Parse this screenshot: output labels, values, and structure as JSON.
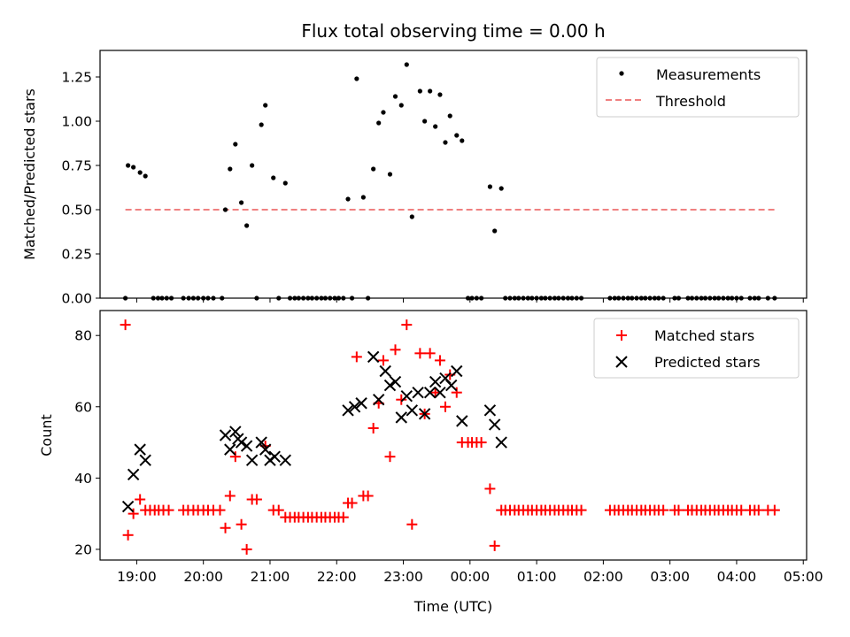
{
  "chart_data": [
    {
      "type": "scatter",
      "title": "Flux total observing time = 0.00 h",
      "xlabel": "",
      "ylabel": "Matched/Predicted stars",
      "xlim": [
        18.45,
        29.05
      ],
      "ylim": [
        0,
        1.4
      ],
      "yticks": [
        0,
        0.25,
        0.5,
        0.75,
        1.0,
        1.25
      ],
      "ytick_labels": [
        "0.00",
        "0.25",
        "0.50",
        "0.75",
        "1.00",
        "1.25"
      ],
      "legend": [
        {
          "label": "Measurements",
          "marker": "dot",
          "color": "#000000"
        },
        {
          "label": "Threshold",
          "marker": "dashed-line",
          "color": "#f08080"
        }
      ],
      "threshold": {
        "value": 0.5,
        "x_start": 18.83,
        "x_end": 28.6,
        "color": "#f08080"
      },
      "measurements": [
        [
          18.83,
          0
        ],
        [
          18.87,
          0.75
        ],
        [
          18.95,
          0.74
        ],
        [
          19.05,
          0.71
        ],
        [
          19.13,
          0.69
        ],
        [
          19.25,
          0
        ],
        [
          19.32,
          0
        ],
        [
          19.38,
          0
        ],
        [
          19.45,
          0
        ],
        [
          19.52,
          0
        ],
        [
          19.7,
          0
        ],
        [
          19.78,
          0
        ],
        [
          19.85,
          0
        ],
        [
          19.92,
          0
        ],
        [
          20.0,
          0
        ],
        [
          20.07,
          0
        ],
        [
          20.15,
          0
        ],
        [
          20.28,
          0
        ],
        [
          20.33,
          0.5
        ],
        [
          20.4,
          0.73
        ],
        [
          20.48,
          0.87
        ],
        [
          20.57,
          0.54
        ],
        [
          20.65,
          0.41
        ],
        [
          20.73,
          0.75
        ],
        [
          20.8,
          0
        ],
        [
          20.87,
          0.98
        ],
        [
          20.93,
          1.09
        ],
        [
          21.05,
          0.68
        ],
        [
          21.13,
          0
        ],
        [
          21.23,
          0.65
        ],
        [
          21.3,
          0
        ],
        [
          21.37,
          0
        ],
        [
          21.43,
          0
        ],
        [
          21.5,
          0
        ],
        [
          21.57,
          0
        ],
        [
          21.63,
          0
        ],
        [
          21.7,
          0
        ],
        [
          21.77,
          0
        ],
        [
          21.83,
          0
        ],
        [
          21.9,
          0
        ],
        [
          21.97,
          0
        ],
        [
          22.03,
          0
        ],
        [
          22.1,
          0
        ],
        [
          22.17,
          0.56
        ],
        [
          22.23,
          0
        ],
        [
          22.3,
          1.24
        ],
        [
          22.4,
          0.57
        ],
        [
          22.47,
          0
        ],
        [
          22.55,
          0.73
        ],
        [
          22.63,
          0.99
        ],
        [
          22.7,
          1.05
        ],
        [
          22.8,
          0.7
        ],
        [
          22.88,
          1.14
        ],
        [
          22.97,
          1.09
        ],
        [
          23.05,
          1.32
        ],
        [
          23.13,
          0.46
        ],
        [
          23.25,
          1.17
        ],
        [
          23.32,
          1.0
        ],
        [
          23.4,
          1.17
        ],
        [
          23.48,
          0.97
        ],
        [
          23.55,
          1.15
        ],
        [
          23.63,
          0.88
        ],
        [
          23.7,
          1.03
        ],
        [
          23.8,
          0.92
        ],
        [
          23.88,
          0.89
        ],
        [
          23.97,
          0
        ],
        [
          24.03,
          0
        ],
        [
          24.1,
          0
        ],
        [
          24.17,
          0
        ],
        [
          24.3,
          0.63
        ],
        [
          24.37,
          0.38
        ],
        [
          24.47,
          0.62
        ],
        [
          24.53,
          0
        ],
        [
          24.6,
          0
        ],
        [
          24.67,
          0
        ],
        [
          24.73,
          0
        ],
        [
          24.8,
          0
        ],
        [
          24.87,
          0
        ],
        [
          24.93,
          0
        ],
        [
          25.0,
          0
        ],
        [
          25.07,
          0
        ],
        [
          25.13,
          0
        ],
        [
          25.2,
          0
        ],
        [
          25.27,
          0
        ],
        [
          25.33,
          0
        ],
        [
          25.4,
          0
        ],
        [
          25.47,
          0
        ],
        [
          25.53,
          0
        ],
        [
          25.6,
          0
        ],
        [
          25.67,
          0
        ],
        [
          26.1,
          0
        ],
        [
          26.17,
          0
        ],
        [
          26.23,
          0
        ],
        [
          26.3,
          0
        ],
        [
          26.37,
          0
        ],
        [
          26.43,
          0
        ],
        [
          26.5,
          0
        ],
        [
          26.57,
          0
        ],
        [
          26.63,
          0
        ],
        [
          26.7,
          0
        ],
        [
          26.77,
          0
        ],
        [
          26.83,
          0
        ],
        [
          26.9,
          0
        ],
        [
          27.07,
          0
        ],
        [
          27.13,
          0
        ],
        [
          27.27,
          0
        ],
        [
          27.33,
          0
        ],
        [
          27.4,
          0
        ],
        [
          27.47,
          0
        ],
        [
          27.53,
          0
        ],
        [
          27.6,
          0
        ],
        [
          27.67,
          0
        ],
        [
          27.73,
          0
        ],
        [
          27.8,
          0
        ],
        [
          27.87,
          0
        ],
        [
          27.93,
          0
        ],
        [
          28.0,
          0
        ],
        [
          28.07,
          0
        ],
        [
          28.2,
          0
        ],
        [
          28.27,
          0
        ],
        [
          28.33,
          0
        ],
        [
          28.47,
          0
        ],
        [
          28.57,
          0
        ]
      ]
    },
    {
      "type": "scatter",
      "title": "",
      "xlabel": "Time (UTC)",
      "ylabel": "Count",
      "xlim": [
        18.45,
        29.05
      ],
      "ylim": [
        17,
        87
      ],
      "yticks": [
        20,
        40,
        60,
        80
      ],
      "ytick_labels": [
        "20",
        "40",
        "60",
        "80"
      ],
      "xticks": [
        19,
        20,
        21,
        22,
        23,
        24,
        25,
        26,
        27,
        28,
        29
      ],
      "xtick_labels": [
        "19:00",
        "20:00",
        "21:00",
        "22:00",
        "23:00",
        "00:00",
        "01:00",
        "02:00",
        "03:00",
        "04:00",
        "05:00"
      ],
      "legend": [
        {
          "label": "Matched stars",
          "marker": "plus",
          "color": "#ff0000"
        },
        {
          "label": "Predicted stars",
          "marker": "x",
          "color": "#000000"
        }
      ],
      "series": [
        {
          "name": "Matched stars",
          "marker": "plus",
          "color": "#ff0000",
          "points": [
            [
              18.83,
              83
            ],
            [
              18.87,
              24
            ],
            [
              18.95,
              30
            ],
            [
              19.05,
              34
            ],
            [
              19.13,
              31
            ],
            [
              19.2,
              31
            ],
            [
              19.27,
              31
            ],
            [
              19.33,
              31
            ],
            [
              19.4,
              31
            ],
            [
              19.48,
              31
            ],
            [
              19.7,
              31
            ],
            [
              19.77,
              31
            ],
            [
              19.85,
              31
            ],
            [
              19.92,
              31
            ],
            [
              20.0,
              31
            ],
            [
              20.07,
              31
            ],
            [
              20.15,
              31
            ],
            [
              20.25,
              31
            ],
            [
              20.33,
              26
            ],
            [
              20.4,
              35
            ],
            [
              20.48,
              46
            ],
            [
              20.57,
              27
            ],
            [
              20.65,
              20
            ],
            [
              20.73,
              34
            ],
            [
              20.8,
              34
            ],
            [
              20.93,
              49
            ],
            [
              21.05,
              31
            ],
            [
              21.13,
              31
            ],
            [
              21.23,
              29
            ],
            [
              21.3,
              29
            ],
            [
              21.37,
              29
            ],
            [
              21.43,
              29
            ],
            [
              21.5,
              29
            ],
            [
              21.57,
              29
            ],
            [
              21.63,
              29
            ],
            [
              21.7,
              29
            ],
            [
              21.77,
              29
            ],
            [
              21.83,
              29
            ],
            [
              21.9,
              29
            ],
            [
              21.97,
              29
            ],
            [
              22.03,
              29
            ],
            [
              22.1,
              29
            ],
            [
              22.17,
              33
            ],
            [
              22.23,
              33
            ],
            [
              22.3,
              74
            ],
            [
              22.4,
              35
            ],
            [
              22.47,
              35
            ],
            [
              22.55,
              54
            ],
            [
              22.63,
              61
            ],
            [
              22.7,
              73
            ],
            [
              22.8,
              46
            ],
            [
              22.88,
              76
            ],
            [
              22.97,
              62
            ],
            [
              23.05,
              83
            ],
            [
              23.13,
              27
            ],
            [
              23.25,
              75
            ],
            [
              23.32,
              58
            ],
            [
              23.4,
              75
            ],
            [
              23.48,
              64
            ],
            [
              23.55,
              73
            ],
            [
              23.63,
              60
            ],
            [
              23.7,
              69
            ],
            [
              23.8,
              64
            ],
            [
              23.88,
              50
            ],
            [
              23.97,
              50
            ],
            [
              24.03,
              50
            ],
            [
              24.1,
              50
            ],
            [
              24.17,
              50
            ],
            [
              24.3,
              37
            ],
            [
              24.37,
              21
            ],
            [
              24.47,
              31
            ],
            [
              24.53,
              31
            ],
            [
              24.6,
              31
            ],
            [
              24.67,
              31
            ],
            [
              24.73,
              31
            ],
            [
              24.8,
              31
            ],
            [
              24.87,
              31
            ],
            [
              24.93,
              31
            ],
            [
              25.0,
              31
            ],
            [
              25.07,
              31
            ],
            [
              25.13,
              31
            ],
            [
              25.2,
              31
            ],
            [
              25.27,
              31
            ],
            [
              25.33,
              31
            ],
            [
              25.4,
              31
            ],
            [
              25.47,
              31
            ],
            [
              25.53,
              31
            ],
            [
              25.6,
              31
            ],
            [
              25.67,
              31
            ],
            [
              26.1,
              31
            ],
            [
              26.17,
              31
            ],
            [
              26.23,
              31
            ],
            [
              26.3,
              31
            ],
            [
              26.37,
              31
            ],
            [
              26.43,
              31
            ],
            [
              26.5,
              31
            ],
            [
              26.57,
              31
            ],
            [
              26.63,
              31
            ],
            [
              26.7,
              31
            ],
            [
              26.77,
              31
            ],
            [
              26.83,
              31
            ],
            [
              26.9,
              31
            ],
            [
              27.07,
              31
            ],
            [
              27.13,
              31
            ],
            [
              27.27,
              31
            ],
            [
              27.33,
              31
            ],
            [
              27.4,
              31
            ],
            [
              27.47,
              31
            ],
            [
              27.53,
              31
            ],
            [
              27.6,
              31
            ],
            [
              27.67,
              31
            ],
            [
              27.73,
              31
            ],
            [
              27.8,
              31
            ],
            [
              27.87,
              31
            ],
            [
              27.93,
              31
            ],
            [
              28.0,
              31
            ],
            [
              28.07,
              31
            ],
            [
              28.2,
              31
            ],
            [
              28.27,
              31
            ],
            [
              28.33,
              31
            ],
            [
              28.47,
              31
            ],
            [
              28.57,
              31
            ]
          ]
        },
        {
          "name": "Predicted stars",
          "marker": "x",
          "color": "#000000",
          "points": [
            [
              18.87,
              32
            ],
            [
              18.95,
              41
            ],
            [
              19.05,
              48
            ],
            [
              19.13,
              45
            ],
            [
              20.33,
              52
            ],
            [
              20.4,
              48
            ],
            [
              20.48,
              53
            ],
            [
              20.52,
              51
            ],
            [
              20.57,
              50
            ],
            [
              20.65,
              49
            ],
            [
              20.73,
              45
            ],
            [
              20.87,
              50
            ],
            [
              20.93,
              48
            ],
            [
              21.0,
              45
            ],
            [
              21.07,
              46
            ],
            [
              21.23,
              45
            ],
            [
              22.17,
              59
            ],
            [
              22.27,
              60
            ],
            [
              22.37,
              61
            ],
            [
              22.55,
              74
            ],
            [
              22.63,
              62
            ],
            [
              22.73,
              70
            ],
            [
              22.8,
              66
            ],
            [
              22.88,
              67
            ],
            [
              22.97,
              57
            ],
            [
              23.05,
              63
            ],
            [
              23.13,
              59
            ],
            [
              23.22,
              64
            ],
            [
              23.32,
              58
            ],
            [
              23.4,
              64
            ],
            [
              23.48,
              67
            ],
            [
              23.55,
              64
            ],
            [
              23.63,
              68
            ],
            [
              23.72,
              66
            ],
            [
              23.8,
              70
            ],
            [
              23.88,
              56
            ],
            [
              24.3,
              59
            ],
            [
              24.37,
              55
            ],
            [
              24.47,
              50
            ]
          ]
        }
      ]
    }
  ]
}
